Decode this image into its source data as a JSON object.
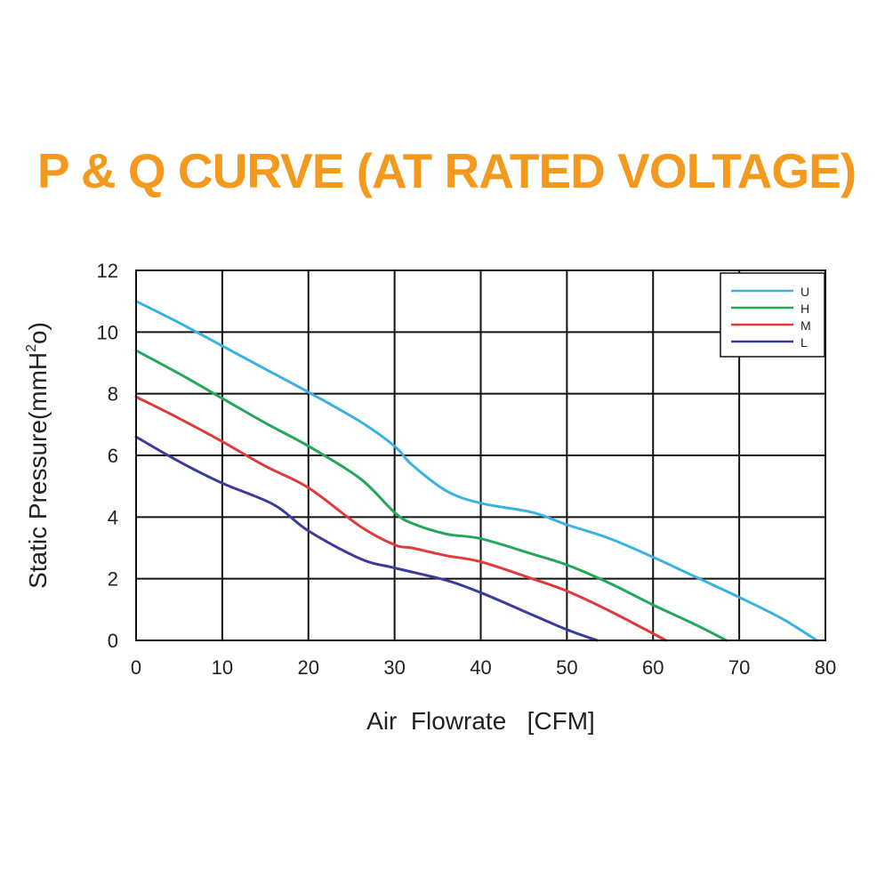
{
  "chart_data": {
    "type": "line",
    "title": "P & Q CURVE (AT RATED VOLTAGE)",
    "xlabel": "Air  Flowrate   [CFM]",
    "ylabel_main": "Static Pressure(mmH",
    "ylabel_sup": "2",
    "ylabel_tail": "o)",
    "xlim": [
      0,
      80
    ],
    "ylim": [
      0,
      12
    ],
    "xticks": [
      0,
      10,
      20,
      30,
      40,
      50,
      60,
      70,
      80
    ],
    "yticks": [
      0,
      2,
      4,
      6,
      8,
      10,
      12
    ],
    "grid": true,
    "legend_position": "top-right",
    "series": [
      {
        "name": "U",
        "color": "#3bb0e3",
        "x": [
          0,
          5,
          10,
          15,
          20,
          26,
          30,
          32,
          36,
          40,
          46,
          50,
          55,
          60,
          65,
          70,
          75,
          79
        ],
        "y": [
          11.0,
          10.3,
          9.55,
          8.8,
          8.05,
          7.1,
          6.3,
          5.7,
          4.85,
          4.45,
          4.15,
          3.75,
          3.3,
          2.7,
          2.05,
          1.4,
          0.7,
          0.0
        ]
      },
      {
        "name": "H",
        "color": "#26a65b",
        "x": [
          0,
          5,
          10,
          15,
          20,
          26,
          30,
          32,
          36,
          40,
          46,
          50,
          55,
          60,
          65,
          68.5
        ],
        "y": [
          9.4,
          8.65,
          7.85,
          7.05,
          6.3,
          5.25,
          4.15,
          3.8,
          3.45,
          3.3,
          2.8,
          2.45,
          1.85,
          1.15,
          0.5,
          0.0
        ]
      },
      {
        "name": "M",
        "color": "#e23a3a",
        "x": [
          0,
          5,
          10,
          15,
          20,
          26,
          30,
          32,
          36,
          40,
          46,
          50,
          55,
          61.5
        ],
        "y": [
          7.9,
          7.2,
          6.45,
          5.65,
          4.95,
          3.7,
          3.1,
          3.0,
          2.75,
          2.55,
          2.0,
          1.6,
          0.95,
          0.0
        ]
      },
      {
        "name": "L",
        "color": "#3b3b99",
        "x": [
          0,
          5,
          10,
          16,
          20,
          26,
          30,
          36,
          40,
          45,
          50,
          53.5
        ],
        "y": [
          6.6,
          5.8,
          5.1,
          4.4,
          3.55,
          2.65,
          2.35,
          1.95,
          1.55,
          0.95,
          0.35,
          0.0
        ]
      }
    ]
  }
}
